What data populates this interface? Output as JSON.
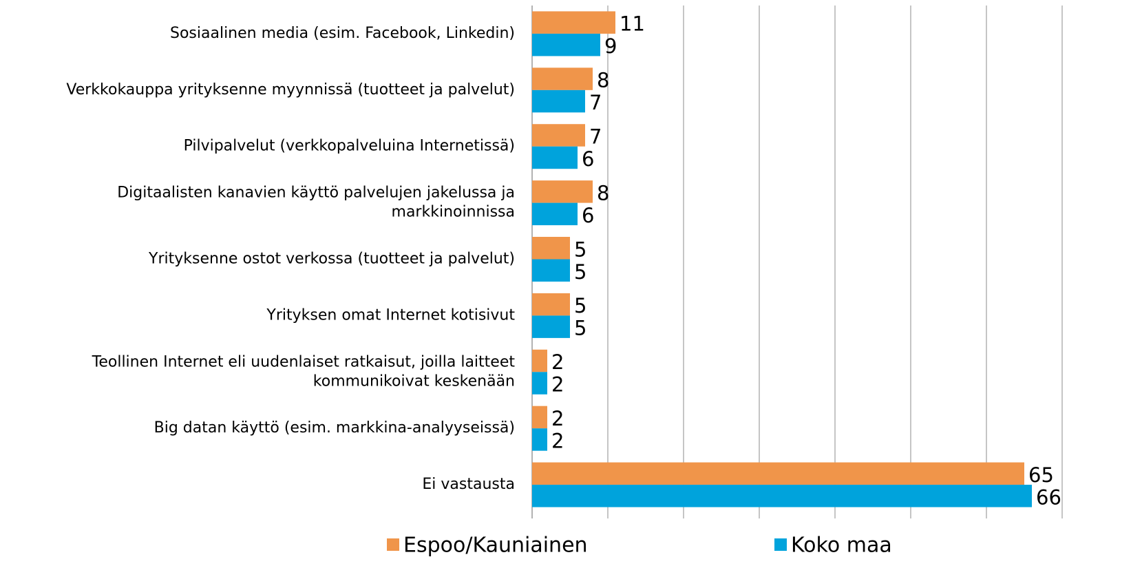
{
  "chart_data": {
    "type": "hbar",
    "categories": [
      "Sosiaalinen media (esim. Facebook, Linkedin)",
      "Verkkokauppa yrityksenne myynnissä (tuotteet ja palvelut)",
      "Pilvipalvelut  (verkkopalveluina Internetissä)",
      "Digitaalisten kanavien käyttö palvelujen jakelussa ja\nmarkkinoinnissa",
      "Yrityksenne ostot verkossa (tuotteet ja palvelut)",
      "Yrityksen omat Internet kotisivut",
      "Teollinen Internet eli uudenlaiset ratkaisut, joilla laitteet\nkommunikoivat keskenään",
      "Big datan käyttö (esim. markkina-analyyseissä)",
      "Ei vastausta"
    ],
    "series": [
      {
        "name": "Espoo/Kauniainen",
        "color": "#f0954a",
        "values": [
          11,
          8,
          7,
          8,
          5,
          5,
          2,
          2,
          65
        ]
      },
      {
        "name": "Koko maa",
        "color": "#00a3dc",
        "values": [
          9,
          7,
          6,
          6,
          5,
          5,
          2,
          2,
          66
        ]
      }
    ],
    "xlim": [
      0,
      70
    ],
    "xticks": [
      0,
      10,
      20,
      30,
      40,
      50,
      60,
      70
    ],
    "grid": true
  }
}
